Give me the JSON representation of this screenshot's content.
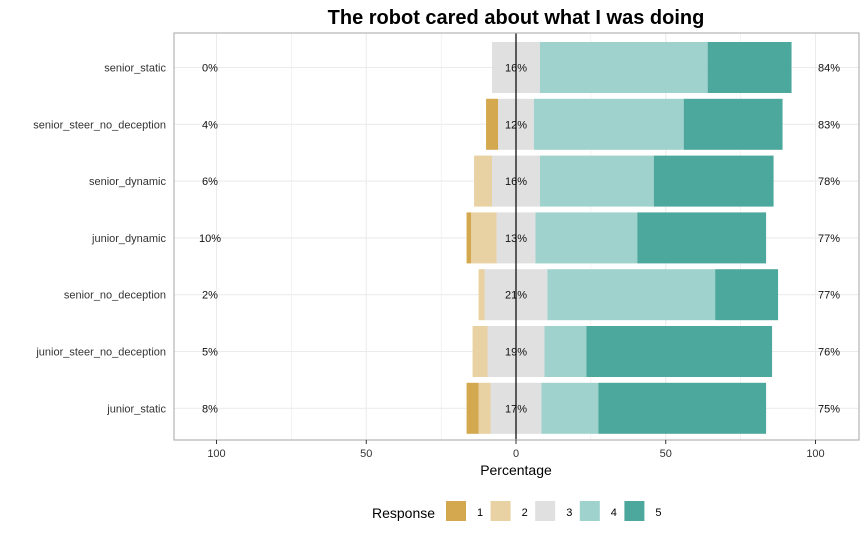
{
  "chart_data": {
    "type": "bar",
    "title": "The robot cared about what I was doing",
    "xlabel": "Percentage",
    "ylabel": "",
    "xlim": [
      -100,
      100
    ],
    "x_ticks": [
      -100,
      -50,
      0,
      50,
      100
    ],
    "x_tick_labels": [
      "100",
      "50",
      "0",
      "50",
      "100"
    ],
    "legend_title": "Response",
    "legend_placement": "bottom",
    "categories": [
      "senior_static",
      "senior_steer_no_deception",
      "senior_dynamic",
      "junior_dynamic",
      "senior_no_deception",
      "junior_steer_no_deception",
      "junior_static"
    ],
    "series": [
      {
        "name": "1",
        "color": "#D4A84F",
        "values": [
          0,
          4,
          0,
          1.5,
          0,
          0,
          4
        ]
      },
      {
        "name": "2",
        "color": "#E8D1A2",
        "values": [
          0,
          0,
          6,
          8.5,
          2,
          5,
          4
        ]
      },
      {
        "name": "3",
        "color": "#E0E0E0",
        "values": [
          16,
          12,
          16,
          13,
          21,
          19,
          17
        ]
      },
      {
        "name": "4",
        "color": "#A0D2CD",
        "values": [
          56,
          50,
          38,
          34,
          56,
          14,
          19
        ]
      },
      {
        "name": "5",
        "color": "#4CA79C",
        "values": [
          28,
          33,
          40,
          43,
          21,
          62,
          56
        ]
      }
    ],
    "left_labels": [
      "0%",
      "4%",
      "6%",
      "10%",
      "2%",
      "5%",
      "8%"
    ],
    "center_labels": [
      "16%",
      "12%",
      "16%",
      "13%",
      "21%",
      "19%",
      "17%"
    ],
    "right_labels": [
      "84%",
      "83%",
      "78%",
      "77%",
      "77%",
      "76%",
      "75%"
    ],
    "grid": true
  }
}
